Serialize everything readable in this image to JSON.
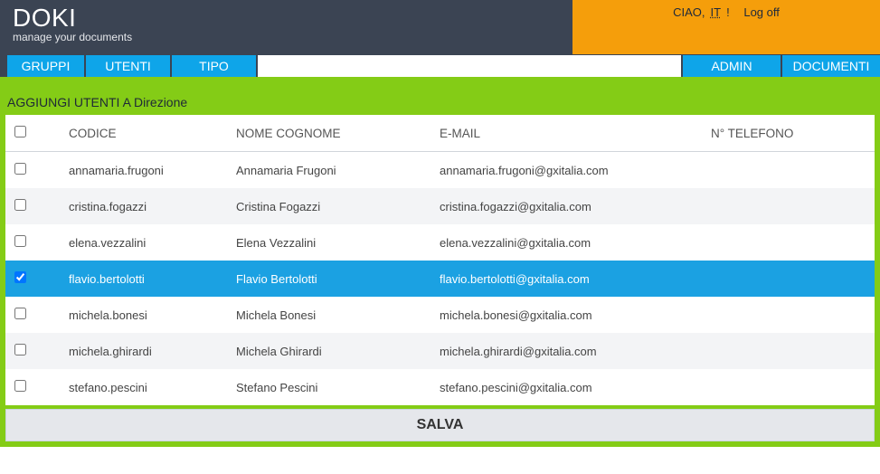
{
  "app": {
    "title": "DOKI",
    "subtitle": "manage your documents"
  },
  "header_right": {
    "greeting": "CIAO,",
    "user": "IT",
    "exclaim": "!",
    "logoff": "Log off"
  },
  "nav_left": [
    {
      "label": "GRUPPI"
    },
    {
      "label": "UTENTI"
    },
    {
      "label": "TIPO"
    }
  ],
  "nav_right": [
    {
      "label": "ADMIN"
    },
    {
      "label": "DOCUMENTI"
    }
  ],
  "page_label": "AGGIUNGI UTENTI A Direzione",
  "columns": {
    "check": "",
    "code": "CODICE",
    "name": "NOME COGNOME",
    "email": "E-MAIL",
    "phone": "N° TELEFONO"
  },
  "rows": [
    {
      "checked": false,
      "code": "annamaria.frugoni",
      "name": "Annamaria Frugoni",
      "email": "annamaria.frugoni@gxitalia.com",
      "phone": ""
    },
    {
      "checked": false,
      "code": "cristina.fogazzi",
      "name": "Cristina Fogazzi",
      "email": "cristina.fogazzi@gxitalia.com",
      "phone": ""
    },
    {
      "checked": false,
      "code": "elena.vezzalini",
      "name": "Elena Vezzalini",
      "email": "elena.vezzalini@gxitalia.com",
      "phone": ""
    },
    {
      "checked": true,
      "code": "flavio.bertolotti",
      "name": "Flavio Bertolotti",
      "email": "flavio.bertolotti@gxitalia.com",
      "phone": "",
      "selected": true
    },
    {
      "checked": false,
      "code": "michela.bonesi",
      "name": "Michela Bonesi",
      "email": "michela.bonesi@gxitalia.com",
      "phone": ""
    },
    {
      "checked": false,
      "code": "michela.ghirardi",
      "name": "Michela Ghirardi",
      "email": "michela.ghirardi@gxitalia.com",
      "phone": ""
    },
    {
      "checked": false,
      "code": "stefano.pescini",
      "name": "Stefano Pescini",
      "email": "stefano.pescini@gxitalia.com",
      "phone": ""
    }
  ],
  "save_label": "SALVA",
  "colors": {
    "header_bg": "#3b4453",
    "accent_orange": "#f59e0b",
    "accent_blue": "#0ea5e9",
    "accent_green": "#84cc16",
    "row_alt": "#f3f4f6",
    "row_selected": "#1ba1e2",
    "save_bg": "#e5e7eb"
  }
}
